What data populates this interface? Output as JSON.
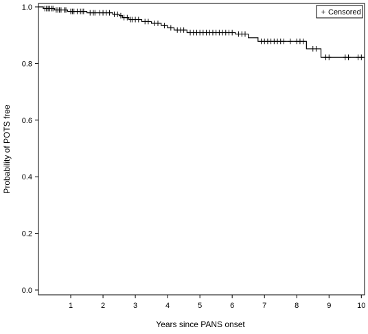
{
  "chart_data": {
    "type": "line",
    "xlabel": "Years since PANS onset",
    "ylabel": "Probability of POTS free",
    "xlim": [
      0,
      10.1
    ],
    "ylim": [
      0,
      1.0
    ],
    "x_ticks": [
      "1",
      "2",
      "3",
      "4",
      "5",
      "6",
      "7",
      "8",
      "9",
      "10"
    ],
    "y_ticks": [
      "0.0",
      "0.2",
      "0.4",
      "0.6",
      "0.8",
      "1.0"
    ],
    "legend": {
      "position": "top-right",
      "entries": [
        {
          "marker": "+",
          "label": "Censored"
        }
      ]
    },
    "series": [
      {
        "x": [
          0,
          0.15,
          0.5,
          0.9,
          1.5,
          2.3,
          2.5,
          2.6,
          2.8,
          3.2,
          3.5,
          3.8,
          4.0,
          4.2,
          4.6,
          6.1,
          6.5,
          6.8,
          8.3,
          8.75,
          10.1
        ],
        "y": [
          1.0,
          0.994,
          0.989,
          0.984,
          0.979,
          0.974,
          0.969,
          0.962,
          0.955,
          0.948,
          0.942,
          0.934,
          0.926,
          0.918,
          0.909,
          0.904,
          0.891,
          0.878,
          0.852,
          0.822,
          0.822
        ]
      }
    ],
    "censored": {
      "x": [
        0.2,
        0.25,
        0.3,
        0.35,
        0.4,
        0.45,
        0.55,
        0.6,
        0.65,
        0.7,
        0.8,
        0.85,
        1.0,
        1.05,
        1.1,
        1.2,
        1.3,
        1.35,
        1.4,
        1.6,
        1.7,
        1.75,
        1.9,
        2.0,
        2.1,
        2.2,
        2.35,
        2.45,
        2.55,
        2.65,
        2.75,
        2.85,
        2.9,
        3.0,
        3.1,
        3.3,
        3.4,
        3.6,
        3.7,
        3.9,
        4.1,
        4.3,
        4.4,
        4.5,
        4.7,
        4.8,
        4.9,
        5.0,
        5.1,
        5.2,
        5.3,
        5.4,
        5.5,
        5.6,
        5.7,
        5.8,
        5.9,
        6.0,
        6.2,
        6.3,
        6.4,
        6.9,
        7.0,
        7.1,
        7.2,
        7.3,
        7.4,
        7.5,
        7.6,
        7.8,
        8.0,
        8.1,
        8.2,
        8.5,
        8.6,
        8.9,
        9.0,
        9.5,
        9.6,
        9.9,
        10.0
      ]
    }
  }
}
